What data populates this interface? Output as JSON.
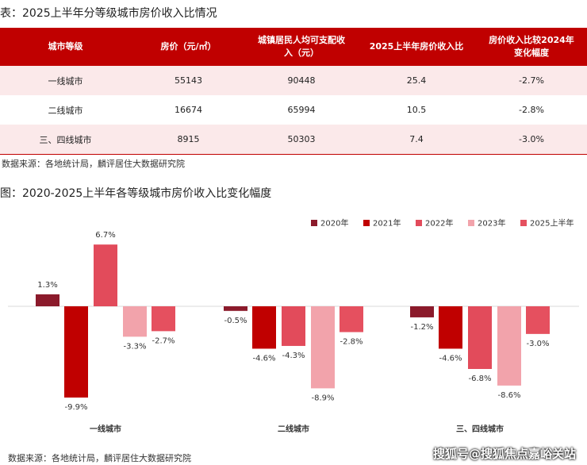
{
  "table_title": "表：2025上半年分等级城市房价收入比情况",
  "table": {
    "header": [
      "城市等级",
      "房价（元/㎡）",
      "城镇居民人均可支配收入（元）",
      "2025上半年房价收入比",
      "房价收入比较2024年变化幅度"
    ],
    "rows": [
      [
        "一线城市",
        55143,
        90448,
        25.4,
        "-2.7%"
      ],
      [
        "二线城市",
        16674,
        65994,
        10.5,
        "-2.8%"
      ],
      [
        "三、四线城市",
        8915,
        50303,
        7.4,
        "-3.0%"
      ]
    ]
  },
  "table_source": "数据来源：各地统计局，麟评居住大数据研究院",
  "chart_data": {
    "type": "bar",
    "title": "图：2020-2025上半年各等级城市房价收入比变化幅度",
    "categories": [
      "一线城市",
      "二线城市",
      "三、四线城市"
    ],
    "series": [
      {
        "name": "2020年",
        "color": "#8b1a2b",
        "values": [
          1.3,
          -0.5,
          -1.2
        ],
        "value_labels": [
          "1.3%",
          "-0.5%",
          "-1.2%"
        ]
      },
      {
        "name": "2021年",
        "color": "#c00000",
        "values": [
          -9.9,
          -4.6,
          -4.6
        ],
        "value_labels": [
          "-9.9%",
          "-4.6%",
          "-4.6%"
        ]
      },
      {
        "name": "2022年",
        "color": "#e24b5b",
        "values": [
          6.7,
          -4.3,
          -6.8
        ],
        "value_labels": [
          "6.7%",
          "-4.3%",
          "-6.8%"
        ]
      },
      {
        "name": "2023年",
        "color": "#f2a3ab",
        "values": [
          -3.3,
          -8.9,
          -8.6
        ],
        "value_labels": [
          "-3.3%",
          "-8.9%",
          "-8.6%"
        ]
      },
      {
        "name": "2025上半年",
        "color": "#e5505f",
        "values": [
          -2.7,
          -2.8,
          -3.0
        ],
        "value_labels": [
          "-2.7%",
          "-2.8%",
          "-3.0%"
        ]
      }
    ]
  },
  "chart_source": "数据来源：各地统计局，麟评居住大数据研究院",
  "watermark": "搜狐号@搜狐焦点嘉峪关站"
}
